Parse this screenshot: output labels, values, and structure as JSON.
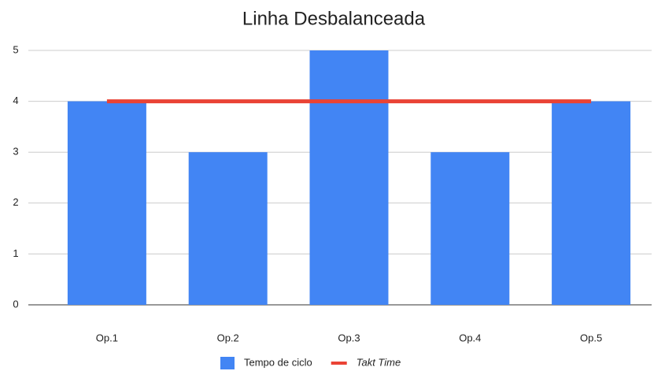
{
  "chart_data": {
    "type": "bar",
    "title": "Linha Desbalanceada",
    "categories": [
      "Op.1",
      "Op.2",
      "Op.3",
      "Op.4",
      "Op.5"
    ],
    "series": [
      {
        "name": "Tempo de ciclo",
        "color": "#4285f4",
        "type": "bar",
        "values": [
          4,
          3,
          5,
          3,
          4
        ]
      },
      {
        "name": "Takt Time",
        "color": "#ea4335",
        "type": "line",
        "values": [
          4,
          4,
          4,
          4,
          4
        ]
      }
    ],
    "ylim": [
      0,
      5
    ],
    "yticks": [
      0,
      1,
      2,
      3,
      4,
      5
    ],
    "grid": true,
    "legend": "bottom"
  }
}
